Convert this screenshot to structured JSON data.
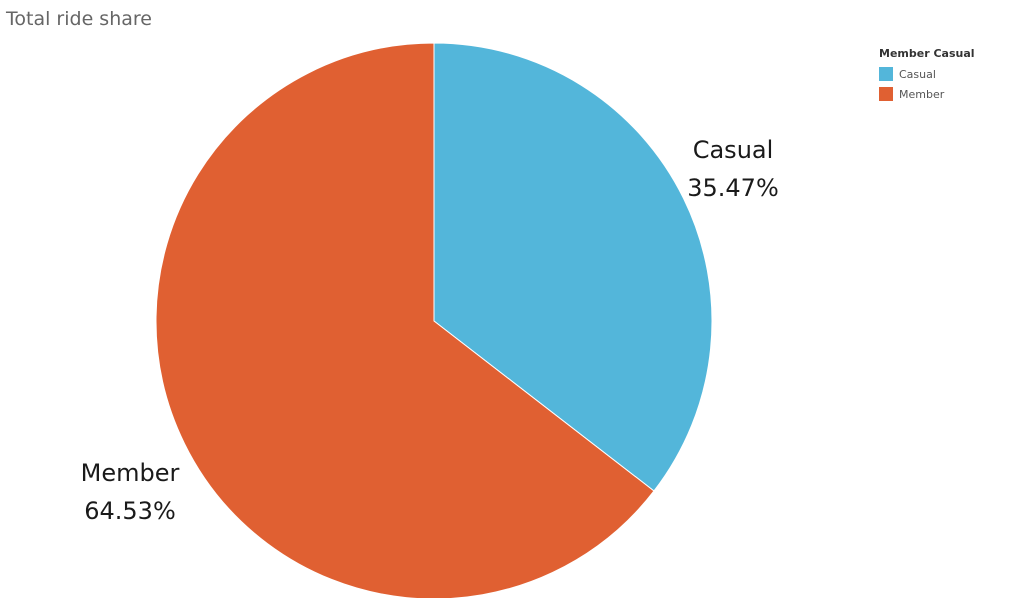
{
  "chart_data": {
    "type": "pie",
    "title": "Total ride share",
    "legend_title": "Member Casual",
    "legend_position": "top-right",
    "slices": [
      {
        "label": "Casual",
        "value": 35.47,
        "value_label": "35.47%",
        "color": "#53B6DA"
      },
      {
        "label": "Member",
        "value": 64.53,
        "value_label": "64.53%",
        "color": "#E06032"
      }
    ]
  }
}
